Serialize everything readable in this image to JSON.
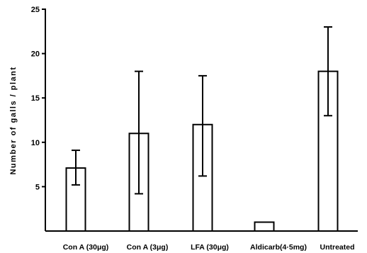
{
  "chart_data": {
    "type": "bar",
    "title": "",
    "xlabel": "",
    "ylabel": "Number of galls / plant",
    "categories": [
      "Con A (30μg)",
      "Con A (3μg)",
      "LFA (30μg)",
      "Aldicarb(4·5mg)",
      "Untreated"
    ],
    "values": [
      7.1,
      11.0,
      12.0,
      1.0,
      18.0
    ],
    "error_high": [
      9.1,
      18.0,
      17.5,
      null,
      23.0
    ],
    "error_low": [
      5.2,
      4.2,
      6.2,
      null,
      13.0
    ],
    "ylim": [
      0,
      25
    ],
    "yticks": [
      "5",
      "10",
      "15",
      "20",
      "25"
    ],
    "grid": false,
    "bar_color": "#ffffff",
    "line_color": "#000000"
  }
}
